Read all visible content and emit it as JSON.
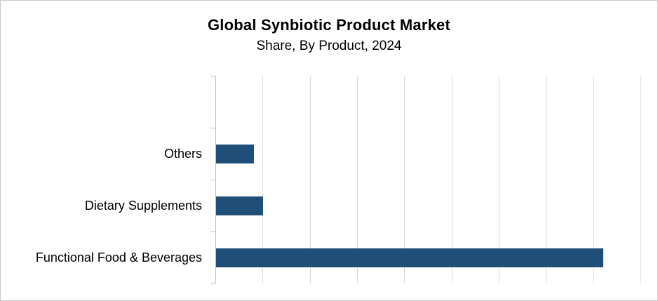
{
  "chart_data": {
    "type": "bar",
    "orientation": "horizontal",
    "title": "Global Synbiotic Product Market",
    "subtitle": "Share, By Product, 2024",
    "categories": [
      "Others",
      "Dietary Supplements",
      "Functional Food & Beverages"
    ],
    "values": [
      8,
      10,
      82
    ],
    "values_estimated_from_gridlines": true,
    "xlabel": "",
    "ylabel": "",
    "xlim": [
      0,
      90
    ],
    "gridline_step": 10,
    "grid": true,
    "x_tick_labels_visible": false,
    "data_labels_visible": false,
    "legend": "none",
    "empty_top_category_slot": true,
    "bar_color": "#1f4e79",
    "gridline_color": "#d9d9d9",
    "axis_color": "#bfbfbf",
    "text_color": "#000000",
    "background_color": "#ffffff",
    "border_color": "#c9c9c9"
  }
}
